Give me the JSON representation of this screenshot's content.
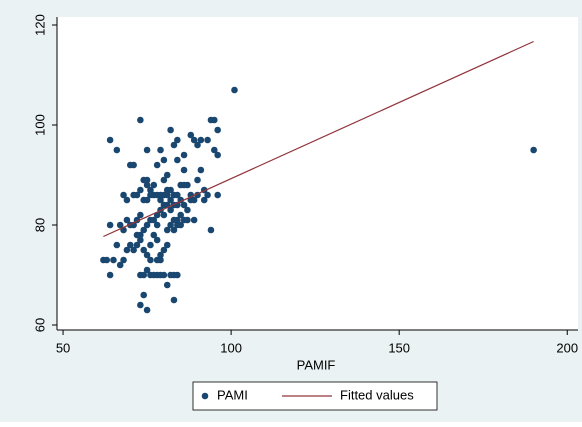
{
  "chart_data": {
    "type": "scatter",
    "x_label": "PAMIF",
    "xlim": [
      48.2,
      203.2
    ],
    "xticks": [
      50,
      100,
      150,
      200
    ],
    "ylim": [
      59,
      121.6
    ],
    "yticks": [
      60,
      80,
      100,
      120
    ],
    "grid": false,
    "legend": "bottom",
    "series": [
      {
        "name": "PAMI",
        "style": "marker",
        "color": "#1a476f",
        "x": [
          190,
          101,
          73,
          64,
          66,
          70,
          75,
          79,
          82,
          84,
          88,
          89,
          90,
          91,
          94,
          95,
          96,
          93,
          95,
          96,
          78,
          81,
          80,
          84,
          86,
          83,
          92,
          96,
          94,
          85,
          87,
          86,
          90,
          89,
          87,
          85,
          83,
          81,
          82,
          80,
          78,
          77,
          76,
          75,
          74,
          73,
          72,
          71,
          70,
          69,
          68,
          69,
          67,
          68,
          66,
          65,
          64,
          63,
          62,
          64,
          67,
          68,
          69,
          70,
          71,
          72,
          73,
          74,
          75,
          76,
          77,
          78,
          79,
          80,
          81,
          82,
          83,
          84,
          85,
          86,
          87,
          88,
          83,
          82,
          80,
          79,
          76,
          75,
          74,
          73,
          72,
          71,
          72,
          73,
          74,
          75,
          76,
          78,
          79,
          80,
          81,
          78,
          77,
          76,
          77,
          78,
          79,
          80,
          82,
          83,
          84,
          75,
          74,
          73,
          73,
          75,
          74,
          83,
          81,
          79,
          76,
          78,
          77,
          81,
          82,
          84,
          85,
          86,
          84,
          86,
          88,
          92,
          93,
          91,
          90,
          80,
          81,
          79,
          75,
          71,
          89,
          84,
          83
        ],
        "values": [
          95,
          107,
          101,
          97,
          95,
          92,
          95,
          95,
          99,
          97,
          98,
          97,
          96,
          97,
          101,
          101,
          99,
          97,
          95,
          94,
          92,
          90,
          93,
          93,
          94,
          96,
          85,
          86,
          79,
          88,
          88,
          91,
          86,
          81,
          81,
          80,
          79,
          79,
          80,
          82,
          82,
          86,
          87,
          88,
          89,
          87,
          86,
          86,
          80,
          81,
          86,
          85,
          80,
          79,
          76,
          73,
          80,
          73,
          73,
          70,
          72,
          73,
          75,
          76,
          75,
          76,
          77,
          79,
          80,
          81,
          81,
          80,
          83,
          84,
          84,
          85,
          86,
          86,
          85,
          84,
          83,
          85,
          84,
          87,
          86,
          86,
          86,
          85,
          85,
          82,
          81,
          80,
          78,
          78,
          75,
          74,
          73,
          73,
          74,
          75,
          76,
          77,
          78,
          70,
          70,
          70,
          70,
          70,
          70,
          70,
          70,
          71,
          70,
          70,
          64,
          63,
          66,
          65,
          68,
          73,
          76,
          86,
          88,
          86,
          83,
          84,
          82,
          81,
          81,
          88,
          86,
          87,
          86,
          91,
          89,
          89,
          87,
          85,
          89,
          92,
          85,
          80,
          81
        ]
      },
      {
        "name": "Fitted values",
        "style": "line",
        "color": "#90353b",
        "x": [
          62,
          190
        ],
        "values": [
          77.7,
          116.7
        ]
      }
    ]
  }
}
